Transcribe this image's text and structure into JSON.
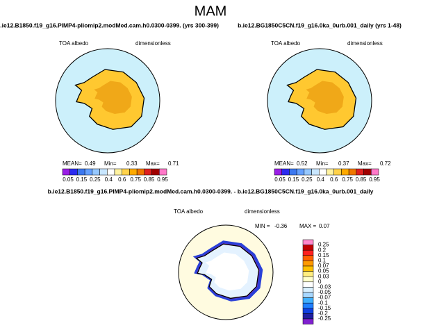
{
  "title": "MAM",
  "panels": [
    {
      "title": "b.ie12.B1850.f19_g16.PIMP4-pliomip2.modMed.cam.h0.0300-0399. (yrs 300-399)",
      "variable": "TOA albedo",
      "units": "dimensionless",
      "stats": [
        {
          "label": "MEAN=",
          "value": 0.49
        },
        {
          "label": "Min=",
          "value": 0.33
        },
        {
          "label": "Max=",
          "value": 0.71
        }
      ]
    },
    {
      "title": "b.ie12.BG1850C5CN.f19_g16.0ka_0urb.001_daily (yrs 1-48)",
      "variable": "TOA albedo",
      "units": "dimensionless",
      "stats": [
        {
          "label": "MEAN=",
          "value": 0.52
        },
        {
          "label": "Min=",
          "value": 0.37
        },
        {
          "label": "Max=",
          "value": 0.72
        }
      ]
    }
  ],
  "colorbar": {
    "colors": [
      "#9a1ee6",
      "#2c2cf0",
      "#3c78f0",
      "#64a0ff",
      "#96c8ff",
      "#c8e6ff",
      "#ffffff",
      "#fff3a0",
      "#ffd24a",
      "#ffaa00",
      "#f07800",
      "#e02020",
      "#a00000",
      "#ff78c8"
    ],
    "labels": [
      0.05,
      0.15,
      0.25,
      0.4,
      0.6,
      0.75,
      0.85,
      0.95
    ]
  },
  "difference": {
    "title": "b.ie12.B1850.f19_g16.PIMP4-pliomip2.modMed.cam.h0.0300-0399. - b.ie12.BG1850C5CN.f19_g16.0ka_0urb.001_daily",
    "variable": "TOA albedo",
    "units": "dimensionless",
    "stats": [
      {
        "label": "MIN =",
        "value": -0.36
      },
      {
        "label": "MAX =",
        "value": 0.07
      }
    ],
    "colorbar": {
      "colors": [
        "#ff88cc",
        "#c00000",
        "#ff2020",
        "#ff6000",
        "#ff9a00",
        "#ffc000",
        "#ffee80",
        "#ffffcc",
        "#ffffff",
        "#d8f0ff",
        "#a8d8ff",
        "#40b0ff",
        "#2080ff",
        "#1040e0",
        "#2020a0",
        "#8020d0"
      ],
      "labels": [
        0.25,
        0.2,
        0.15,
        0.1,
        0.07,
        0.05,
        0.03,
        0,
        -0.03,
        -0.05,
        -0.07,
        -0.1,
        -0.15,
        -0.2,
        -0.25
      ]
    }
  }
}
